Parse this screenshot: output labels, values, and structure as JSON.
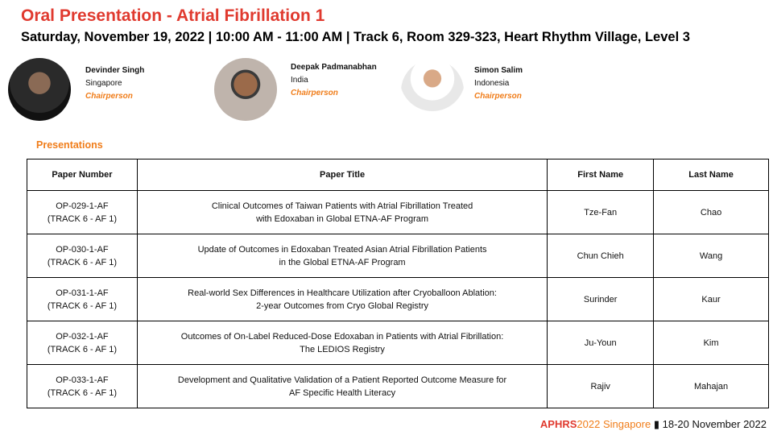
{
  "title": "Oral Presentation - Atrial Fibrillation 1",
  "subtitle": "Saturday, November 19, 2022 | 10:00 AM - 11:00 AM | Track 6, Room 329-323, Heart Rhythm Village, Level 3",
  "chairs": [
    {
      "name": "Devinder Singh",
      "country": "Singapore",
      "role": "Chairperson"
    },
    {
      "name": "Deepak Padmanabhan",
      "country": "India",
      "role": "Chairperson"
    },
    {
      "name": "Simon Salim",
      "country": "Indonesia",
      "role": "Chairperson"
    }
  ],
  "section": "Presentations",
  "table": {
    "headers": [
      "Paper Number",
      "Paper Title",
      "First Name",
      "Last Name"
    ],
    "rows": [
      {
        "num1": "OP-029-1-AF",
        "num2": "(TRACK 6 - AF 1)",
        "t1": "Clinical Outcomes of Taiwan Patients with Atrial Fibrillation Treated",
        "t2": "with Edoxaban in Global ETNA-AF Program",
        "first": "Tze-Fan",
        "last": "Chao"
      },
      {
        "num1": "OP-030-1-AF",
        "num2": "(TRACK 6 - AF 1)",
        "t1": "Update of Outcomes in Edoxaban Treated Asian Atrial Fibrillation Patients",
        "t2": "in the Global ETNA-AF Program",
        "first": "Chun Chieh",
        "last": "Wang"
      },
      {
        "num1": "OP-031-1-AF",
        "num2": "(TRACK 6 - AF 1)",
        "t1": "Real-world Sex Differences in Healthcare Utilization after Cryoballoon Ablation:",
        "t2": "2-year Outcomes from Cryo Global Registry",
        "first": "Surinder",
        "last": "Kaur"
      },
      {
        "num1": "OP-032-1-AF",
        "num2": "(TRACK 6 - AF 1)",
        "t1": "Outcomes of On-Label Reduced-Dose Edoxaban in Patients with Atrial Fibrillation:",
        "t2": "The LEDIOS Registry",
        "first": "Ju-Youn",
        "last": "Kim"
      },
      {
        "num1": "OP-033-1-AF",
        "num2": "(TRACK 6 - AF 1)",
        "t1": "Development and Qualitative Validation of a Patient Reported Outcome Measure for",
        "t2": "AF Specific Health Literacy",
        "first": "Rajiv",
        "last": "Mahajan"
      }
    ]
  },
  "footer": {
    "brand": "APHRS",
    "year": "2022 Singapore",
    "sep": "▮",
    "dates": "18-20 November 2022"
  },
  "colors": {
    "accent": "#e03a2f",
    "orange": "#f07d1a"
  }
}
